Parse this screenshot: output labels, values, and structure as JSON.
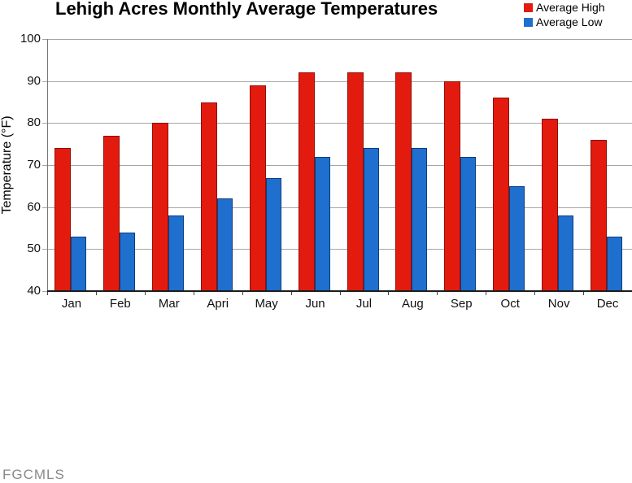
{
  "page": {
    "watermark": "FGCMLS"
  },
  "chart_data": {
    "type": "bar",
    "title": "Lehigh Acres Monthly Average Temperatures",
    "ylabel": "Temperature (°F)",
    "xlabel": "",
    "categories": [
      "Jan",
      "Feb",
      "Mar",
      "Apri",
      "May",
      "Jun",
      "Jul",
      "Aug",
      "Sep",
      "Oct",
      "Nov",
      "Dec"
    ],
    "series": [
      {
        "name": "Average High",
        "color": "#e31b0e",
        "border_color": "#8e0f06",
        "values": [
          74,
          77,
          80,
          85,
          89,
          92,
          92,
          92,
          90,
          86,
          81,
          76
        ]
      },
      {
        "name": "Average Low",
        "color": "#1e6fce",
        "border_color": "#0f3c80",
        "values": [
          53,
          54,
          58,
          62,
          67,
          72,
          74,
          74,
          72,
          65,
          58,
          53
        ]
      }
    ],
    "ylim": [
      40,
      100
    ],
    "yticks": [
      40,
      50,
      60,
      70,
      80,
      90,
      100
    ],
    "grid": true,
    "legend_position": "top-right",
    "colors": {
      "gridline": "#a6a6a6",
      "y_axis_line": "#777777",
      "x_axis_line": "#1c1c1c",
      "tick": "#444444",
      "text": "#111111",
      "watermark": "#8a8a8a"
    }
  }
}
